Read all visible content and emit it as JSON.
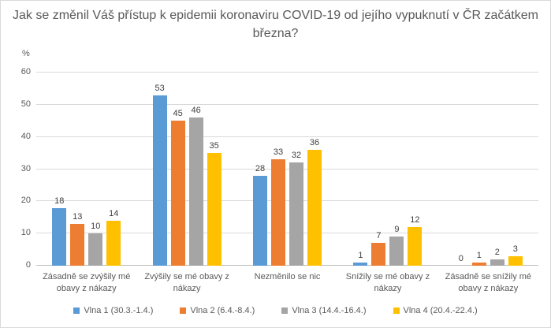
{
  "chart_data": {
    "type": "bar",
    "title": "Jak se změnil Váš přístup k epidemii koronaviru COVID-19 od jejího vypuknutí v ČR začátkem března?",
    "ylabel": "%",
    "xlabel": "",
    "ylim": [
      0,
      60
    ],
    "yticks": [
      0,
      10,
      20,
      30,
      40,
      50,
      60
    ],
    "grid": true,
    "legend_position": "bottom",
    "data_labels": true,
    "categories": [
      "Zásadně se zvýšily mé obavy z nákazy",
      "Zvýšily se mé obavy z nákazy",
      "Nezměnilo se nic",
      "Snížily se mé obavy z nákazy",
      "Zásadně se snížily mé obavy z nákazy"
    ],
    "series": [
      {
        "name": "Vlna 1 (30.3.-1.4.)",
        "color": "#5B9BD5",
        "values": [
          18,
          53,
          28,
          1,
          0
        ]
      },
      {
        "name": "Vlna 2 (6.4.-8.4.)",
        "color": "#ED7D31",
        "values": [
          13,
          45,
          33,
          7,
          1
        ]
      },
      {
        "name": "Vlna 3 (14.4.-16.4.)",
        "color": "#A5A5A5",
        "values": [
          10,
          46,
          32,
          9,
          2
        ]
      },
      {
        "name": "Vlna 4 (20.4.-22.4.)",
        "color": "#FFC000",
        "values": [
          14,
          35,
          36,
          12,
          3
        ]
      }
    ]
  },
  "colors": {
    "gridline": "#D9D9D9",
    "axis_line": "#BFBFBF",
    "axis_text": "#595959",
    "title_text": "#595959",
    "data_label_text": "#404040",
    "frame_border": "#D9D9D9"
  }
}
